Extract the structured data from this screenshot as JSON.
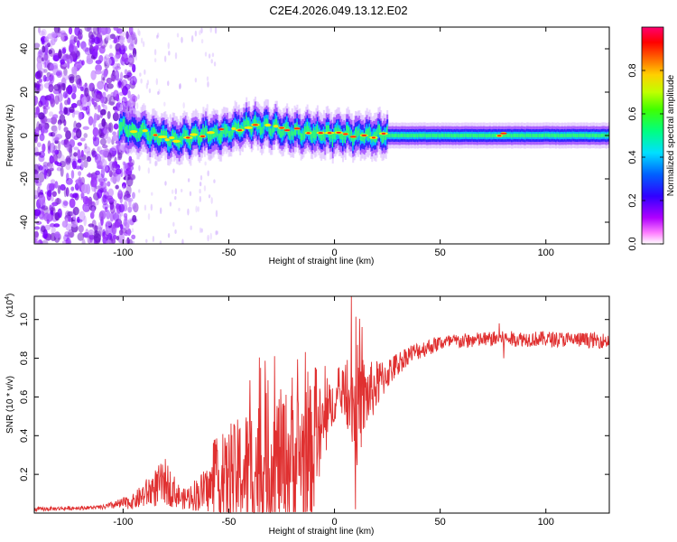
{
  "title": "C2E4.2026.049.13.12.E02",
  "chart_data": [
    {
      "type": "heatmap",
      "xlabel": "Height of straight line (km)",
      "ylabel": "Frequency (Hz)",
      "xlim": [
        -142,
        130
      ],
      "ylim": [
        -50,
        50
      ],
      "xticks": [
        -100,
        -50,
        0,
        50,
        100
      ],
      "yticks": [
        -40,
        -20,
        0,
        20,
        40
      ],
      "colorbar": {
        "label": "Normalized spectral amplitude",
        "range": [
          0,
          1
        ],
        "ticks": [
          "0.0",
          "0.2",
          "0.4",
          "0.6",
          "0.8"
        ],
        "tick_values": [
          0.0,
          0.2,
          0.4,
          0.6,
          0.8
        ]
      },
      "band_center_hz": [
        {
          "x": -100,
          "f": 4
        },
        {
          "x": -95,
          "f": 2
        },
        {
          "x": -85,
          "f": 0
        },
        {
          "x": -75,
          "f": -2
        },
        {
          "x": -65,
          "f": 0
        },
        {
          "x": -55,
          "f": 1
        },
        {
          "x": -48,
          "f": 3
        },
        {
          "x": -40,
          "f": 5
        },
        {
          "x": -30,
          "f": 4
        },
        {
          "x": -20,
          "f": 2
        },
        {
          "x": -10,
          "f": 1
        },
        {
          "x": 0,
          "f": 0
        },
        {
          "x": 10,
          "f": 0
        },
        {
          "x": 20,
          "f": 0
        },
        {
          "x": 60,
          "f": 0
        },
        {
          "x": 130,
          "f": 0
        }
      ],
      "noise_region_km": [
        -142,
        -100
      ],
      "colors": {
        "colormap": [
          "#ffffff",
          "#ff00ff",
          "#7f00ff",
          "#0000ff",
          "#00ffff",
          "#00ff00",
          "#ffff00",
          "#ff0000",
          "#ff0066"
        ],
        "noise": "#8a2be2"
      }
    },
    {
      "type": "line",
      "xlabel": "Height of straight line (km)",
      "ylabel": "SNR (10 * v/v)",
      "ylabel_multiplier": "(x10",
      "ylabel_exponent": "4",
      "xlim": [
        -142,
        130
      ],
      "ylim": [
        0,
        1.12
      ],
      "xticks": [
        -100,
        -50,
        0,
        50,
        100
      ],
      "yticks": [
        0.2,
        0.4,
        0.6,
        0.8,
        1.0
      ],
      "ytick_labels": [
        "0.2",
        "0.4",
        "0.6",
        "0.8",
        "1.0"
      ],
      "series_color": "#e03030",
      "envelope": [
        {
          "x": -142,
          "base": 0.02,
          "amp": 0.01
        },
        {
          "x": -110,
          "base": 0.03,
          "amp": 0.01
        },
        {
          "x": -95,
          "base": 0.06,
          "amp": 0.04
        },
        {
          "x": -85,
          "base": 0.13,
          "amp": 0.1
        },
        {
          "x": -80,
          "base": 0.16,
          "amp": 0.12
        },
        {
          "x": -72,
          "base": 0.07,
          "amp": 0.05
        },
        {
          "x": -60,
          "base": 0.12,
          "amp": 0.12
        },
        {
          "x": -50,
          "base": 0.18,
          "amp": 0.25
        },
        {
          "x": -40,
          "base": 0.22,
          "amp": 0.35
        },
        {
          "x": -30,
          "base": 0.26,
          "amp": 0.38
        },
        {
          "x": -20,
          "base": 0.28,
          "amp": 0.36
        },
        {
          "x": -10,
          "base": 0.32,
          "amp": 0.35
        },
        {
          "x": -5,
          "base": 0.45,
          "amp": 0.22
        },
        {
          "x": 0,
          "base": 0.58,
          "amp": 0.1
        },
        {
          "x": 5,
          "base": 0.62,
          "amp": 0.12
        },
        {
          "x": 10,
          "base": 0.55,
          "amp": 0.35
        },
        {
          "x": 15,
          "base": 0.6,
          "amp": 0.18
        },
        {
          "x": 25,
          "base": 0.72,
          "amp": 0.08
        },
        {
          "x": 35,
          "base": 0.82,
          "amp": 0.05
        },
        {
          "x": 50,
          "base": 0.88,
          "amp": 0.04
        },
        {
          "x": 75,
          "base": 0.9,
          "amp": 0.04
        },
        {
          "x": 100,
          "base": 0.9,
          "amp": 0.04
        },
        {
          "x": 130,
          "base": 0.89,
          "amp": 0.04
        }
      ],
      "spikes": [
        {
          "x": 8,
          "y": 1.12
        },
        {
          "x": 10,
          "y": 0.02
        },
        {
          "x": -35,
          "y": 0.75
        },
        {
          "x": -20,
          "y": 0.7
        },
        {
          "x": -9,
          "y": 0.75
        },
        {
          "x": 78,
          "y": 0.98
        },
        {
          "x": 80,
          "y": 0.8
        }
      ]
    }
  ]
}
